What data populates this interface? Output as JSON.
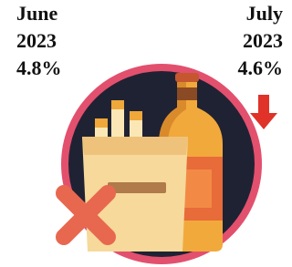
{
  "left": {
    "month": "June",
    "year": "2023",
    "value": "4.8%"
  },
  "right": {
    "month": "July",
    "year": "2023",
    "value": "4.6%"
  }
}
